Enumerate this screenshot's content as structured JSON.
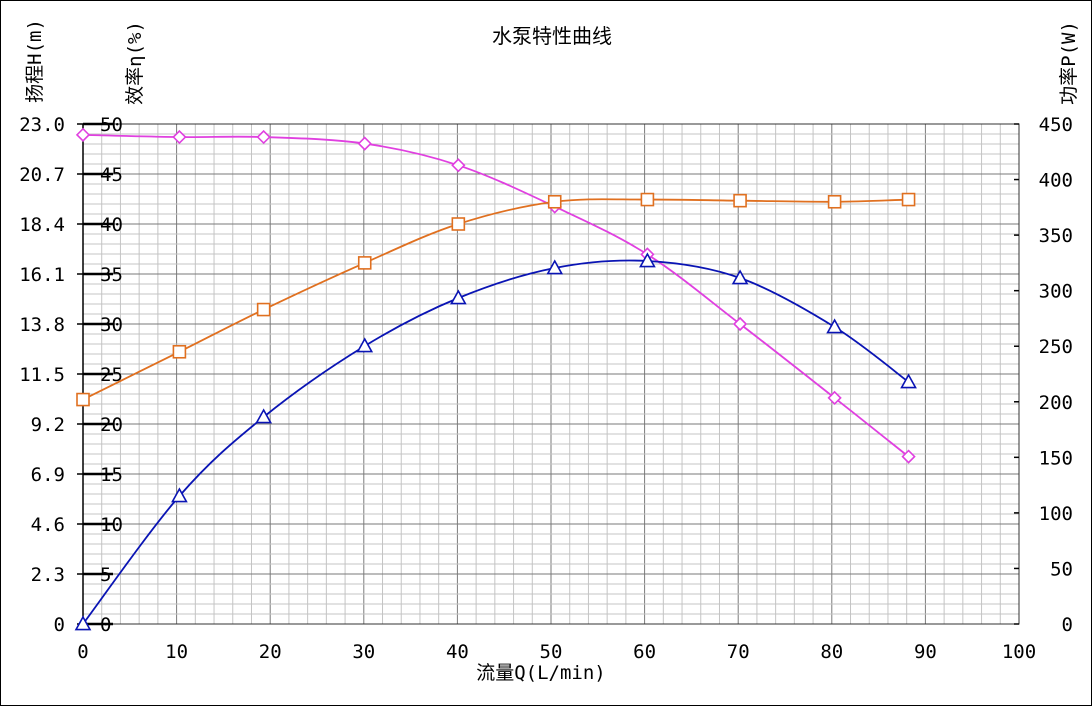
{
  "chart_data": {
    "type": "line",
    "title": "水泵特性曲线",
    "xlabel": "流量Q(L/min)",
    "ylabel_head": "扬程H(m)",
    "ylabel_eff": "效率η(%)",
    "ylabel_power": "功率P(W)",
    "xlim": [
      0,
      100
    ],
    "x_ticks": [
      "0",
      "10",
      "20",
      "30",
      "40",
      "50",
      "60",
      "70",
      "80",
      "90",
      "100"
    ],
    "head_ticks": [
      "0",
      "2.3",
      "4.6",
      "6.9",
      "9.2",
      "11.5",
      "13.8",
      "16.1",
      "18.4",
      "20.7",
      "23.0"
    ],
    "eff_ticks": [
      "0",
      "5",
      "10",
      "15",
      "20",
      "25",
      "30",
      "35",
      "40",
      "45",
      "50"
    ],
    "power_ticks": [
      "0",
      "50",
      "100",
      "150",
      "200",
      "250",
      "300",
      "350",
      "400",
      "450"
    ],
    "head_lim": [
      0,
      23
    ],
    "eff_lim": [
      0,
      50
    ],
    "power_lim": [
      0,
      450
    ],
    "grid": true,
    "series": [
      {
        "axis": "head",
        "marker": "diamond",
        "color": "#e040e0",
        "x": [
          0,
          10.3,
          19.3,
          30.1,
          40.1,
          50.4,
          60.3,
          70.2,
          80.3,
          88.2
        ],
        "y": [
          22.5,
          22.4,
          22.4,
          22.1,
          21.1,
          19.2,
          17.0,
          13.8,
          10.4,
          7.7
        ]
      },
      {
        "axis": "power",
        "marker": "square",
        "color": "#e07020",
        "x": [
          0,
          10.3,
          19.3,
          30.1,
          40.1,
          50.4,
          60.3,
          70.2,
          80.3,
          88.2
        ],
        "y": [
          202,
          245,
          283,
          325,
          360,
          380,
          382,
          381,
          380,
          382
        ]
      },
      {
        "axis": "eff",
        "marker": "triangle",
        "color": "#0a14b4",
        "x": [
          0,
          10.3,
          19.3,
          30.1,
          40.1,
          50.4,
          60.3,
          70.2,
          80.3,
          88.2
        ],
        "y": [
          0,
          12.8,
          20.7,
          27.8,
          32.6,
          35.6,
          36.3,
          34.6,
          29.7,
          24.2
        ]
      }
    ]
  }
}
